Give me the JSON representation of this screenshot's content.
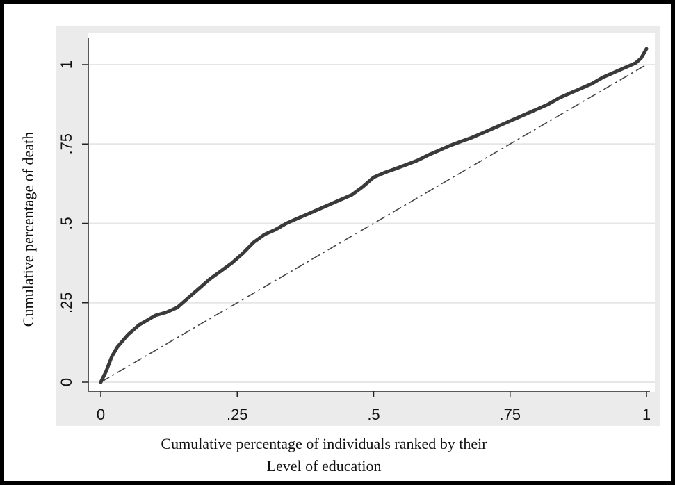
{
  "colors": {
    "plot_background": "#ebebeb",
    "plot_inner": "#ffffff",
    "gridline": "#e6e6e6",
    "curve": "#3a3a3a",
    "diagonal": "#444444",
    "frame_border": "#000000"
  },
  "chart_data": {
    "type": "line",
    "title": "",
    "xlabel": [
      "Cumulative percentage of individuals ranked by their",
      "Level of education"
    ],
    "ylabel": "Cumulative percentage of death",
    "xlim": [
      0,
      1
    ],
    "ylim": [
      0,
      1.05
    ],
    "xticks": [
      {
        "value": 0,
        "label": "0"
      },
      {
        "value": 0.25,
        "label": ".25"
      },
      {
        "value": 0.5,
        "label": ".5"
      },
      {
        "value": 0.75,
        "label": ".75"
      },
      {
        "value": 1,
        "label": "1"
      }
    ],
    "yticks": [
      {
        "value": 0,
        "label": "0"
      },
      {
        "value": 0.25,
        "label": ".25"
      },
      {
        "value": 0.5,
        "label": ".5"
      },
      {
        "value": 0.75,
        "label": ".75"
      },
      {
        "value": 1,
        "label": "1"
      }
    ],
    "grid": "horizontal",
    "legend": "none",
    "series": [
      {
        "style": "solid-thick",
        "x": [
          0,
          0.01,
          0.02,
          0.03,
          0.04,
          0.05,
          0.06,
          0.07,
          0.08,
          0.09,
          0.1,
          0.12,
          0.14,
          0.16,
          0.18,
          0.2,
          0.22,
          0.24,
          0.26,
          0.28,
          0.3,
          0.32,
          0.34,
          0.36,
          0.38,
          0.4,
          0.42,
          0.44,
          0.46,
          0.48,
          0.5,
          0.52,
          0.54,
          0.56,
          0.58,
          0.6,
          0.62,
          0.64,
          0.66,
          0.68,
          0.7,
          0.72,
          0.74,
          0.76,
          0.78,
          0.8,
          0.82,
          0.84,
          0.86,
          0.88,
          0.9,
          0.92,
          0.94,
          0.96,
          0.98,
          0.99,
          1.0
        ],
        "y": [
          0,
          0.035,
          0.08,
          0.11,
          0.13,
          0.15,
          0.165,
          0.18,
          0.19,
          0.2,
          0.21,
          0.22,
          0.235,
          0.265,
          0.295,
          0.325,
          0.35,
          0.375,
          0.405,
          0.44,
          0.465,
          0.48,
          0.5,
          0.515,
          0.53,
          0.545,
          0.56,
          0.575,
          0.59,
          0.615,
          0.645,
          0.66,
          0.672,
          0.685,
          0.698,
          0.715,
          0.73,
          0.745,
          0.758,
          0.77,
          0.785,
          0.8,
          0.815,
          0.83,
          0.845,
          0.86,
          0.875,
          0.895,
          0.91,
          0.925,
          0.94,
          0.96,
          0.975,
          0.99,
          1.005,
          1.02,
          1.05
        ]
      },
      {
        "style": "dashed",
        "x": [
          0,
          1
        ],
        "y": [
          0,
          1
        ]
      }
    ]
  }
}
